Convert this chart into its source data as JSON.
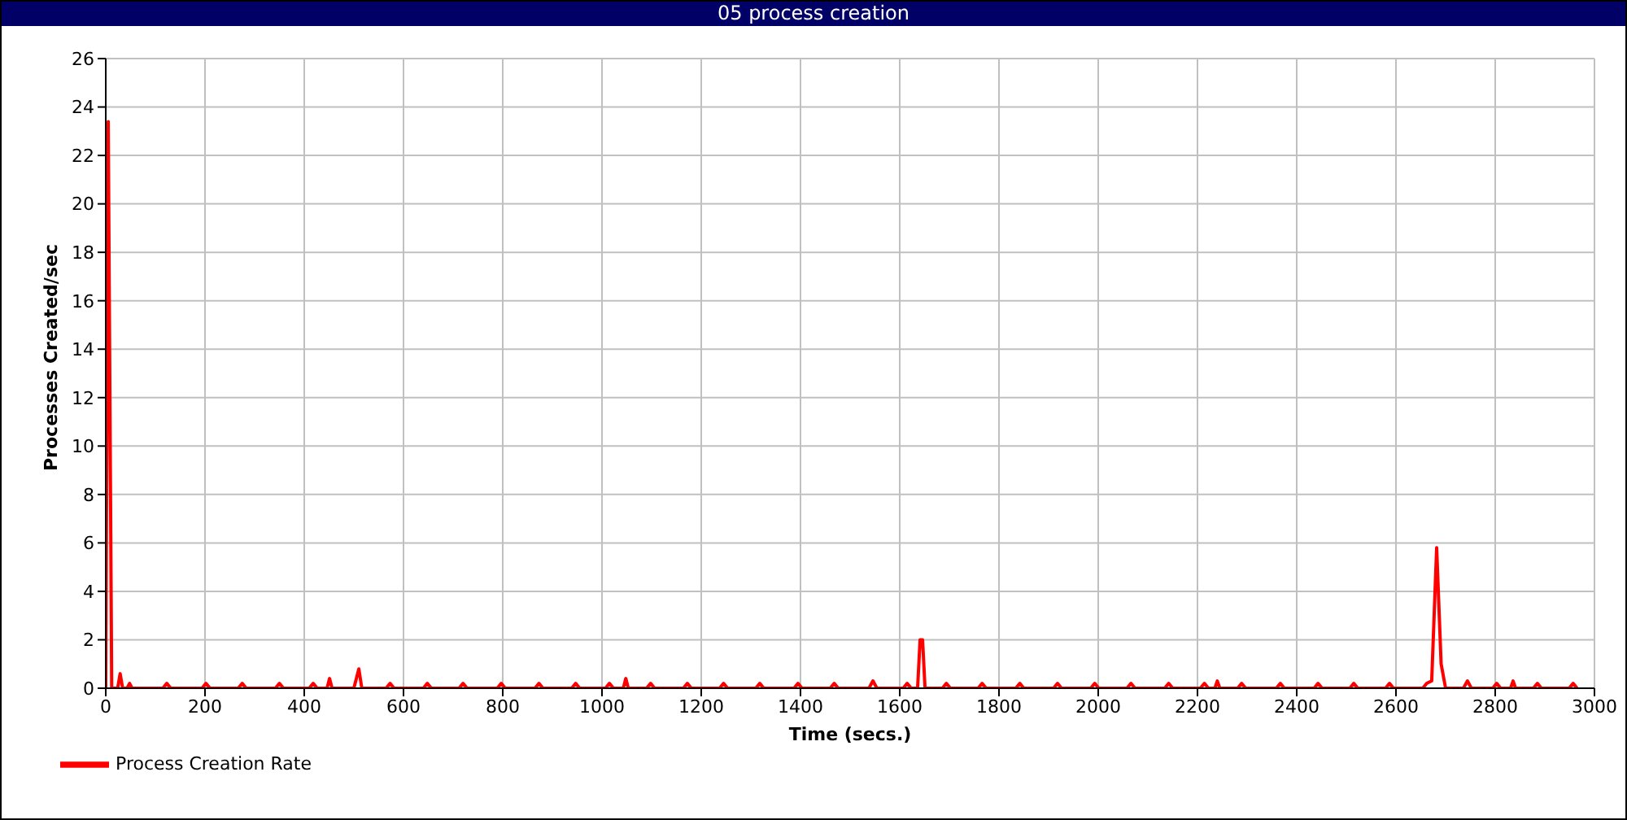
{
  "chart_data": {
    "type": "line",
    "title": "05 process creation",
    "xlabel": "Time (secs.)",
    "ylabel": "Processes Created/sec",
    "series": [
      {
        "name": "Process Creation Rate",
        "color": "#ff0000",
        "x": [
          0,
          5,
          12,
          24,
          29,
          34,
          43,
          48,
          53,
          115,
          123,
          131,
          194,
          202,
          210,
          267,
          275,
          283,
          342,
          350,
          358,
          410,
          418,
          426,
          446,
          451,
          456,
          500,
          510,
          516,
          565,
          573,
          581,
          640,
          648,
          656,
          712,
          720,
          728,
          789,
          797,
          805,
          865,
          873,
          881,
          939,
          947,
          955,
          1007,
          1015,
          1023,
          1043,
          1048,
          1053,
          1090,
          1098,
          1106,
          1164,
          1172,
          1180,
          1237,
          1245,
          1253,
          1310,
          1318,
          1326,
          1387,
          1395,
          1403,
          1460,
          1468,
          1476,
          1538,
          1546,
          1554,
          1607,
          1615,
          1623,
          1636,
          1641,
          1646,
          1651,
          1686,
          1694,
          1702,
          1758,
          1766,
          1774,
          1834,
          1842,
          1850,
          1910,
          1918,
          1926,
          1985,
          1993,
          2001,
          2058,
          2066,
          2074,
          2134,
          2142,
          2150,
          2206,
          2214,
          2222,
          2235,
          2240,
          2245,
          2281,
          2289,
          2297,
          2359,
          2367,
          2375,
          2435,
          2443,
          2451,
          2507,
          2515,
          2523,
          2579,
          2587,
          2595,
          2654,
          2662,
          2672,
          2682,
          2691,
          2700,
          2736,
          2744,
          2752,
          2795,
          2803,
          2811,
          2831,
          2836,
          2841,
          2877,
          2885,
          2893,
          2949,
          2957,
          2965
        ],
        "values": [
          0,
          23.4,
          0,
          0,
          0.6,
          0,
          0,
          0.2,
          0,
          0,
          0.2,
          0,
          0,
          0.2,
          0,
          0,
          0.2,
          0,
          0,
          0.2,
          0,
          0,
          0.2,
          0,
          0,
          0.4,
          0,
          0,
          0.8,
          0,
          0,
          0.2,
          0,
          0,
          0.2,
          0,
          0,
          0.2,
          0,
          0,
          0.2,
          0,
          0,
          0.2,
          0,
          0,
          0.2,
          0,
          0,
          0.2,
          0,
          0,
          0.4,
          0,
          0,
          0.2,
          0,
          0,
          0.2,
          0,
          0,
          0.2,
          0,
          0,
          0.2,
          0,
          0,
          0.2,
          0,
          0,
          0.2,
          0,
          0,
          0.3,
          0,
          0,
          0.2,
          0,
          0,
          2,
          2,
          0,
          0,
          0.2,
          0,
          0,
          0.2,
          0,
          0,
          0.2,
          0,
          0,
          0.2,
          0,
          0,
          0.2,
          0,
          0,
          0.2,
          0,
          0,
          0.2,
          0,
          0,
          0.2,
          0,
          0,
          0.3,
          0,
          0,
          0.2,
          0,
          0,
          0.2,
          0,
          0,
          0.2,
          0,
          0,
          0.2,
          0,
          0,
          0.2,
          0,
          0,
          0.2,
          0.3,
          5.8,
          1.0,
          0,
          0,
          0.3,
          0,
          0,
          0.2,
          0,
          0,
          0.3,
          0,
          0,
          0.2,
          0,
          0,
          0.2,
          0
        ]
      }
    ],
    "xlim": [
      0,
      3000
    ],
    "xticks": [
      0,
      200,
      400,
      600,
      800,
      1000,
      1200,
      1400,
      1600,
      1800,
      2000,
      2200,
      2400,
      2600,
      2800,
      3000
    ],
    "ylim": [
      0,
      26
    ],
    "yticks": [
      0,
      2,
      4,
      6,
      8,
      10,
      12,
      14,
      16,
      18,
      20,
      22,
      24,
      26
    ],
    "grid": true,
    "legend": "bottom left",
    "marker": "none",
    "line_style": "solid"
  }
}
